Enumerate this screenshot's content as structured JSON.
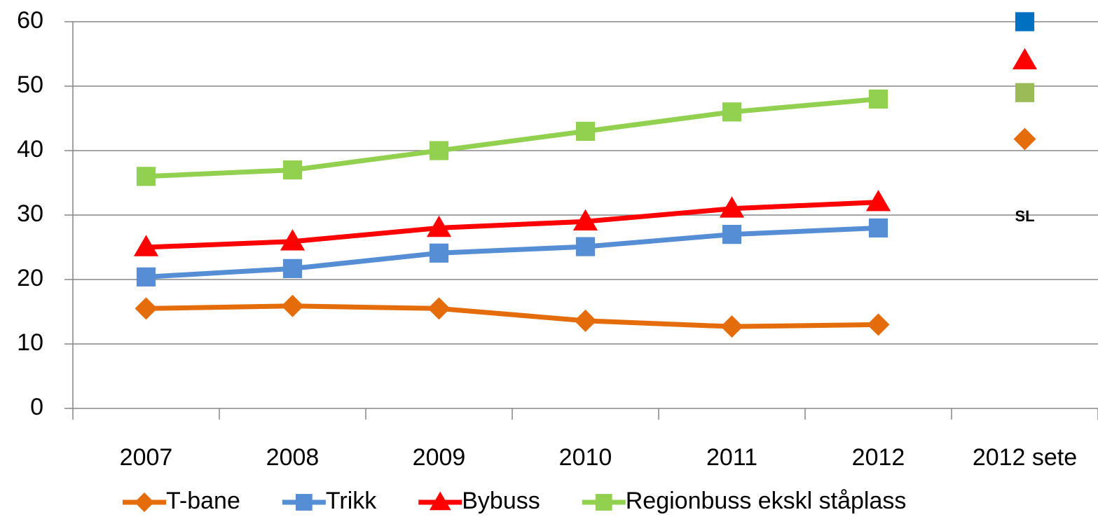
{
  "chart_data": {
    "type": "line",
    "categories": [
      "2007",
      "2008",
      "2009",
      "2010",
      "2011",
      "2012",
      "2012 sete"
    ],
    "series": [
      {
        "name": "T-bane",
        "color": "#e46c0a",
        "marker": "diamond",
        "values": [
          15.5,
          15.9,
          15.5,
          13.6,
          12.7,
          13.0,
          null
        ]
      },
      {
        "name": "Trikk",
        "color": "#558ed5",
        "marker": "square",
        "values": [
          20.4,
          21.7,
          24.1,
          25.1,
          27.0,
          28.0,
          null
        ]
      },
      {
        "name": "Bybuss",
        "color": "#ff0000",
        "marker": "triangle",
        "values": [
          25.0,
          25.9,
          28.0,
          29.0,
          31.0,
          32.0,
          null
        ]
      },
      {
        "name": "Regionbuss ekskl ståplass",
        "color": "#92d050",
        "marker": "square",
        "values": [
          36.0,
          37.0,
          40.0,
          43.0,
          46.0,
          48.0,
          null
        ]
      }
    ],
    "sete_points": [
      {
        "color": "#e46c0a",
        "marker": "diamond",
        "values": [
          null,
          null,
          null,
          null,
          null,
          null,
          41.8
        ]
      },
      {
        "color": "#0070c0",
        "marker": "square",
        "values": [
          null,
          null,
          null,
          null,
          null,
          null,
          60
        ]
      },
      {
        "color": "#ff0000",
        "marker": "triangle",
        "values": [
          null,
          null,
          null,
          null,
          null,
          null,
          54
        ]
      },
      {
        "color": "#9bbb59",
        "marker": "square",
        "values": [
          null,
          null,
          null,
          null,
          null,
          null,
          49
        ]
      }
    ],
    "annotation": {
      "text": "SL",
      "color": "#0070c0"
    },
    "ylim": [
      0,
      60
    ],
    "yticks": [
      0,
      10,
      20,
      30,
      40,
      50,
      60
    ],
    "grid": true,
    "legend": "bottom"
  }
}
